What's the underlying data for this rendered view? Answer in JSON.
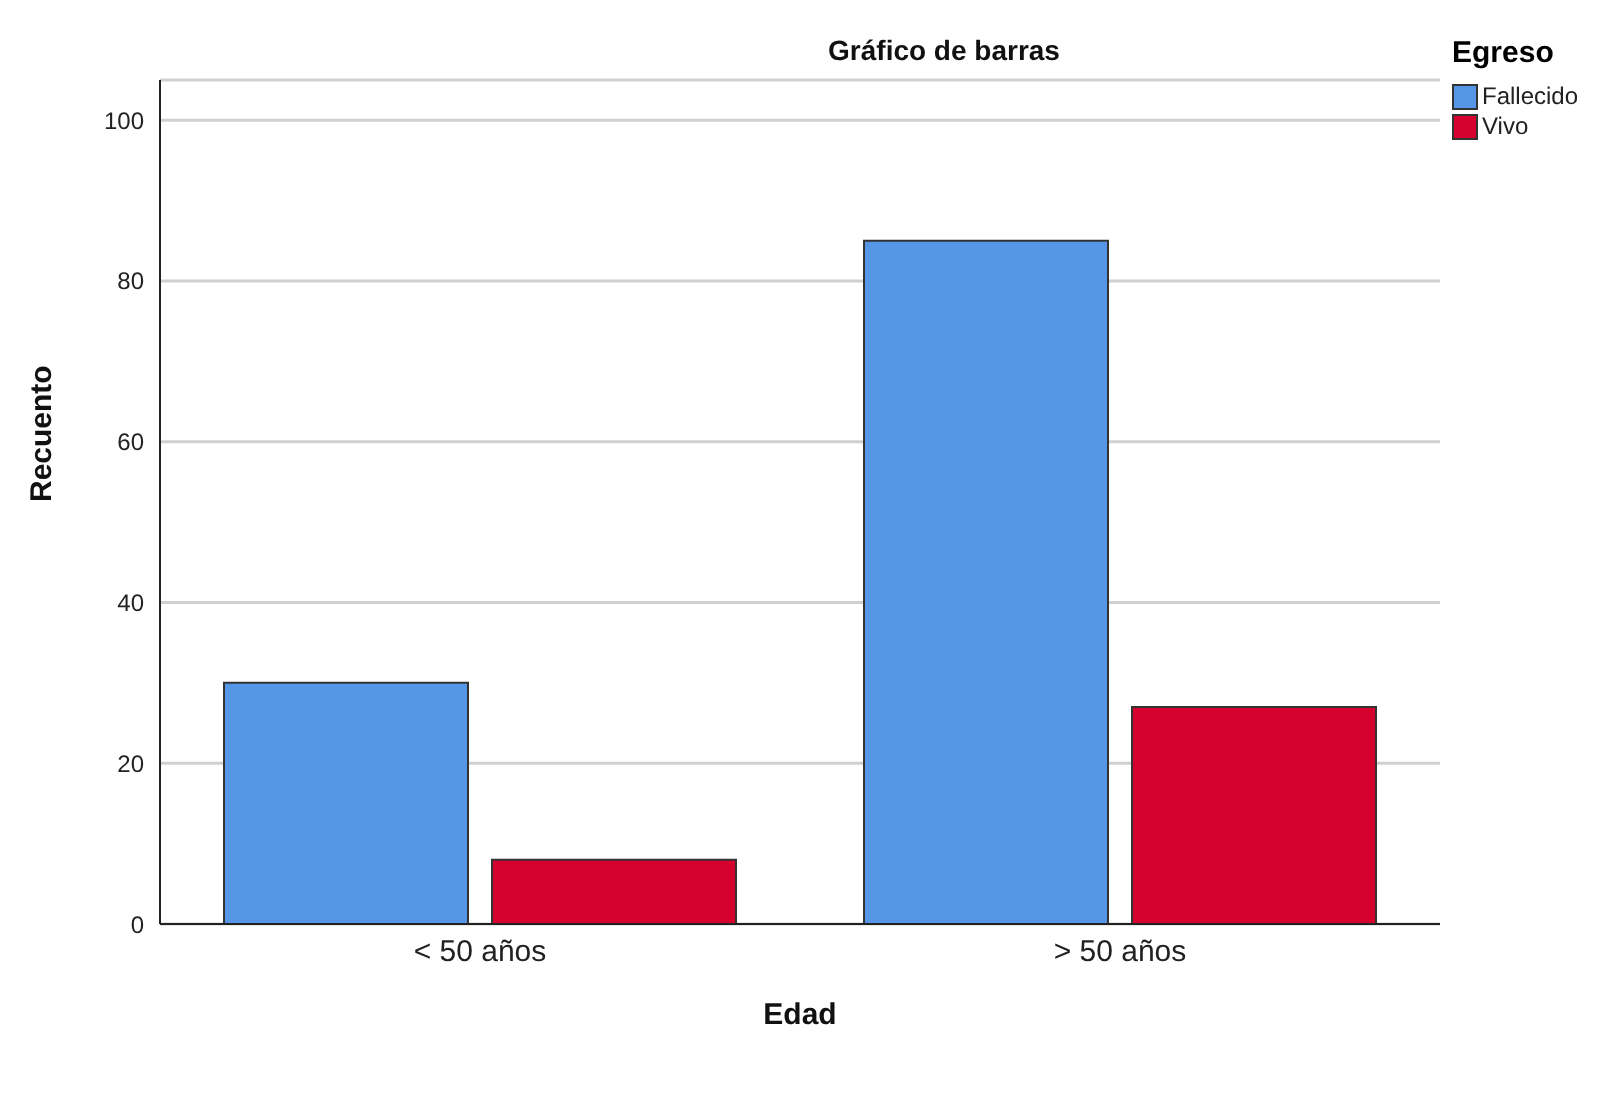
{
  "chart_data": {
    "type": "bar",
    "title": "Gráfico de barras",
    "xlabel": "Edad",
    "ylabel": "Recuento",
    "legend_title": "Egreso",
    "categories": [
      "< 50 años",
      "> 50 años"
    ],
    "series": [
      {
        "name": "Fallecido",
        "color": "#5596e6",
        "values": [
          30,
          85
        ]
      },
      {
        "name": "Vivo",
        "color": "#d6002f",
        "values": [
          8,
          27
        ]
      }
    ],
    "ylim": [
      0,
      105
    ],
    "yticks": [
      0,
      20,
      40,
      60,
      80,
      100
    ],
    "grid": "y",
    "legend": "top right"
  }
}
